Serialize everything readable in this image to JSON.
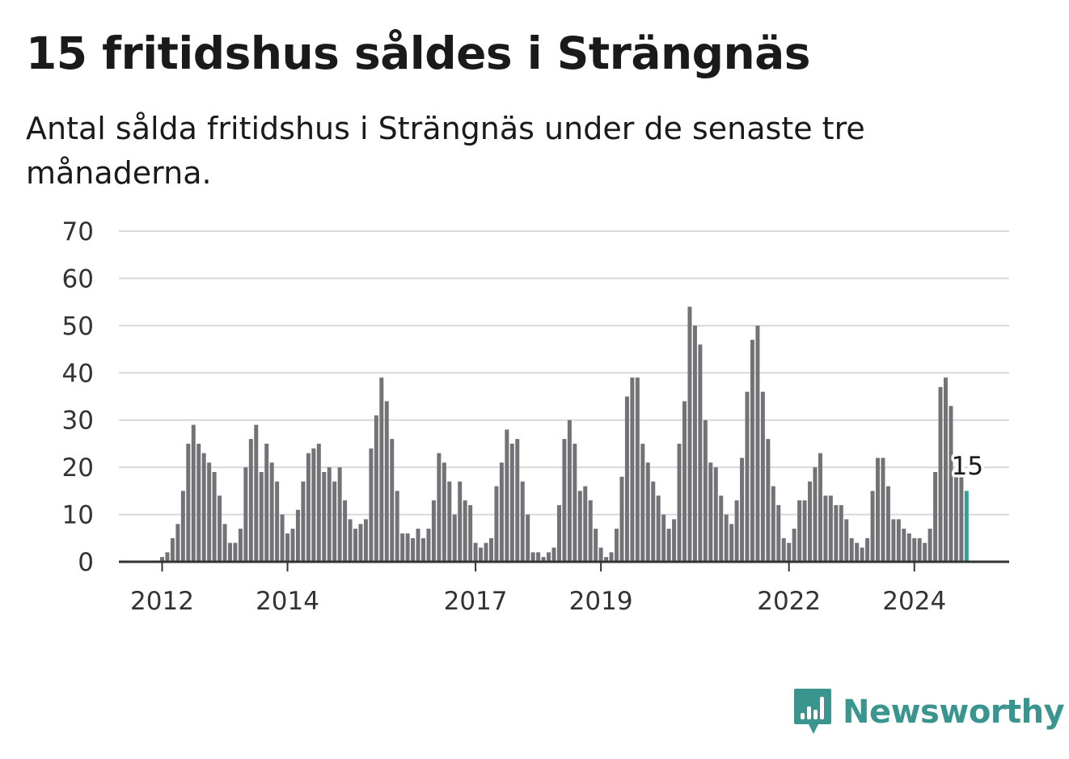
{
  "title": "15 fritidshus såldes i Strängnäs",
  "subtitle": "Antal sålda fritidshus i Strängnäs under de senaste tre månaderna.",
  "brand": {
    "name": "Newsworthy",
    "color": "#3a958f"
  },
  "colors": {
    "bar": "#737277",
    "highlight": "#2aa39a",
    "grid": "#d9d9d9",
    "axis": "#333333"
  },
  "chart_data": {
    "type": "bar",
    "title": "15 fritidshus såldes i Strängnäs",
    "xlabel": "",
    "ylabel": "",
    "ylim": [
      0,
      70
    ],
    "yticks": [
      0,
      10,
      20,
      30,
      40,
      50,
      60,
      70
    ],
    "xticks": [
      "2012",
      "2014",
      "2017",
      "2019",
      "2022",
      "2024"
    ],
    "grid": true,
    "start": "2012-01",
    "frequency": "monthly",
    "annotation": {
      "label": "15",
      "value": 15,
      "period": "2024-12"
    },
    "values": [
      1,
      2,
      5,
      8,
      15,
      25,
      29,
      25,
      23,
      21,
      19,
      14,
      8,
      4,
      4,
      7,
      20,
      26,
      29,
      19,
      25,
      21,
      17,
      10,
      6,
      7,
      11,
      17,
      23,
      24,
      25,
      19,
      20,
      17,
      20,
      13,
      9,
      7,
      8,
      9,
      24,
      31,
      39,
      34,
      26,
      15,
      6,
      6,
      5,
      7,
      5,
      7,
      13,
      23,
      21,
      17,
      10,
      17,
      13,
      12,
      4,
      3,
      4,
      5,
      16,
      21,
      28,
      25,
      26,
      17,
      10,
      2,
      2,
      1,
      2,
      3,
      12,
      26,
      30,
      25,
      15,
      16,
      13,
      7,
      3,
      1,
      2,
      7,
      18,
      35,
      39,
      39,
      25,
      21,
      17,
      14,
      10,
      7,
      9,
      25,
      34,
      54,
      50,
      46,
      30,
      21,
      20,
      14,
      10,
      8,
      13,
      22,
      36,
      47,
      50,
      36,
      26,
      16,
      12,
      5,
      4,
      7,
      13,
      13,
      17,
      20,
      23,
      14,
      14,
      12,
      12,
      9,
      5,
      4,
      3,
      5,
      15,
      22,
      22,
      16,
      9,
      9,
      7,
      6,
      5,
      5,
      4,
      7,
      19,
      37,
      39,
      33,
      18,
      18,
      15
    ]
  }
}
